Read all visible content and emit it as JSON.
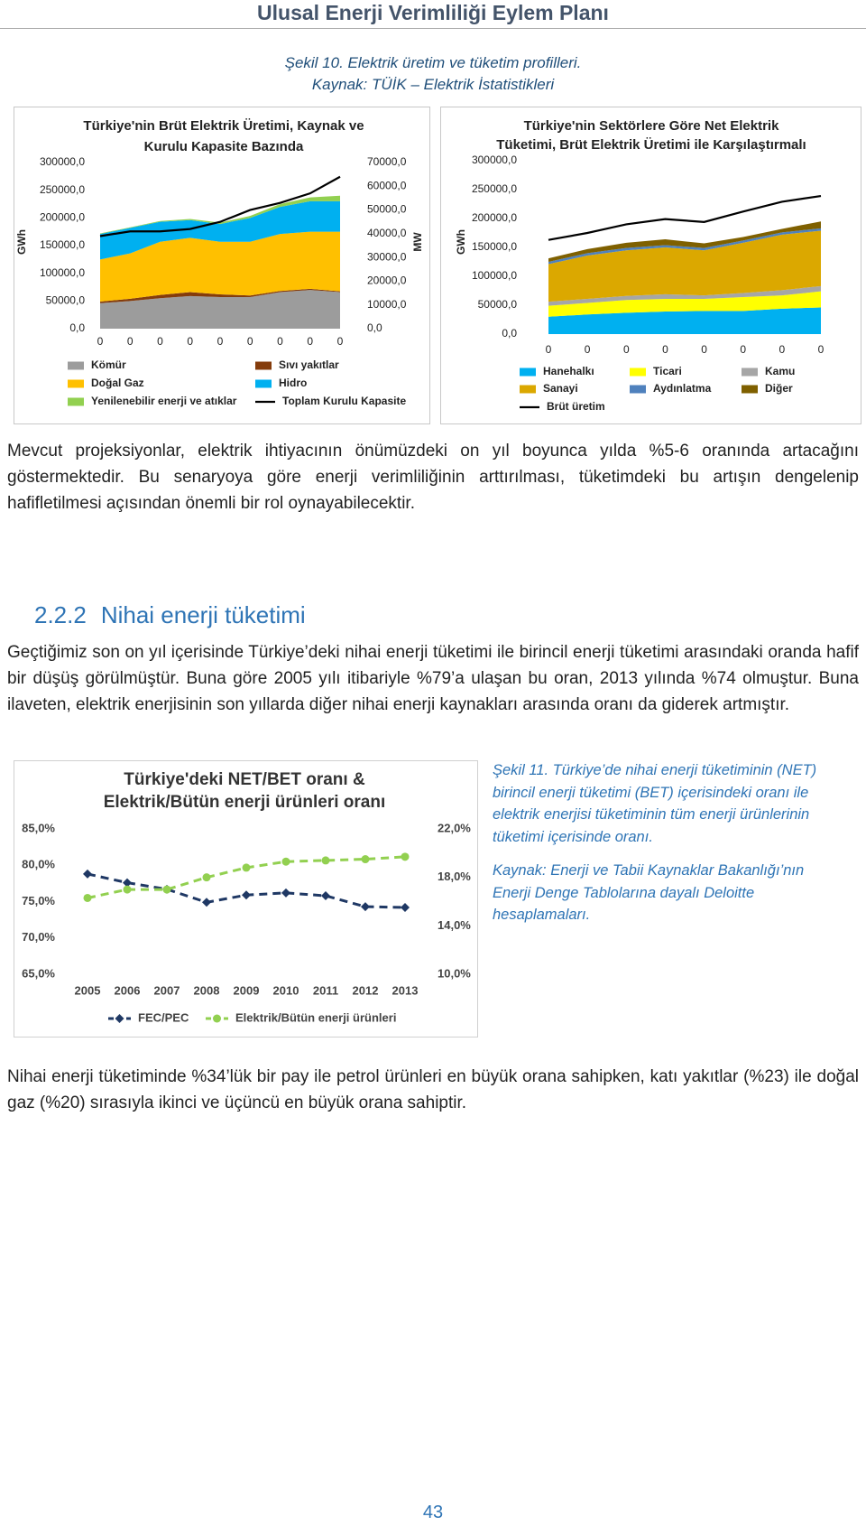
{
  "header": {
    "title": "Ulusal Enerji Verimliliği Eylem Planı"
  },
  "figure_10": {
    "caption": "Şekil 10. Elektrik üretim ve tüketim profilleri.",
    "source": "Kaynak: TÜİK – Elektrik İstatistikleri"
  },
  "chart_data": [
    {
      "type": "area",
      "title": [
        "Türkiye'nin Brüt Elektrik Üretimi, Kaynak ve",
        "Kurulu Kapasite Bazında"
      ],
      "ylabel": "GWh",
      "y2label": "MW",
      "categories": [
        "0",
        "0",
        "0",
        "0",
        "0",
        "0",
        "0",
        "0",
        "0"
      ],
      "ylim": [
        0,
        300000
      ],
      "yticks": [
        {
          "value": 0,
          "label": "0,0"
        },
        {
          "value": 50000,
          "label": "50000,0"
        },
        {
          "value": 100000,
          "label": "100000,0"
        },
        {
          "value": 150000,
          "label": "150000,0"
        },
        {
          "value": 200000,
          "label": "200000,0"
        },
        {
          "value": 250000,
          "label": "250000,0"
        },
        {
          "value": 300000,
          "label": "300000,0"
        }
      ],
      "y2lim": [
        0,
        70000
      ],
      "y2ticks": [
        {
          "value": 0,
          "label": "0,0"
        },
        {
          "value": 10000,
          "label": "10000,0"
        },
        {
          "value": 20000,
          "label": "20000,0"
        },
        {
          "value": 30000,
          "label": "30000,0"
        },
        {
          "value": 40000,
          "label": "40000,0"
        },
        {
          "value": 50000,
          "label": "50000,0"
        },
        {
          "value": 60000,
          "label": "60000,0"
        },
        {
          "value": 70000,
          "label": "70000,0"
        }
      ],
      "series": [
        {
          "name": "Kömür",
          "color": "#9c9c9c",
          "values": [
            46000,
            50000,
            55000,
            59000,
            57000,
            57000,
            66000,
            70000,
            66000
          ]
        },
        {
          "name": "Sıvı yakıtlar",
          "color": "#843c0c",
          "values": [
            3000,
            4000,
            6000,
            7000,
            5000,
            3000,
            2000,
            2000,
            1500
          ]
        },
        {
          "name": "Doğal Gaz",
          "color": "#ffc000",
          "values": [
            76000,
            82000,
            96000,
            98000,
            95000,
            97000,
            103000,
            103000,
            107500
          ]
        },
        {
          "name": "Hidro",
          "color": "#00b0f0",
          "values": [
            46000,
            46000,
            36000,
            32000,
            32000,
            43000,
            49000,
            55000,
            55000
          ]
        },
        {
          "name": "Yenilenebilir enerji ve atıklar",
          "color": "#92d050",
          "values": [
            1000,
            1000,
            1500,
            2000,
            2500,
            3500,
            5000,
            7000,
            10000
          ]
        },
        {
          "name": "Toplam Kurulu Kapasite",
          "color": "#000000",
          "kind": "line",
          "axis": "y2",
          "values": [
            39000,
            41000,
            41000,
            42000,
            45000,
            50000,
            53000,
            57000,
            64000
          ]
        }
      ]
    },
    {
      "type": "area",
      "title": [
        "Türkiye'nin Sektörlere Göre Net Elektrik",
        "Tüketimi, Brüt Elektrik Üretimi ile Karşılaştırmalı"
      ],
      "ylabel": "GWh",
      "categories": [
        "0",
        "0",
        "0",
        "0",
        "0",
        "0",
        "0",
        "0"
      ],
      "ylim": [
        0,
        300000
      ],
      "yticks": [
        {
          "value": 0,
          "label": "0,0"
        },
        {
          "value": 50000,
          "label": "50000,0"
        },
        {
          "value": 100000,
          "label": "100000,0"
        },
        {
          "value": 150000,
          "label": "150000,0"
        },
        {
          "value": 200000,
          "label": "200000,0"
        },
        {
          "value": 250000,
          "label": "250000,0"
        },
        {
          "value": 300000,
          "label": "300000,0"
        }
      ],
      "series": [
        {
          "name": "Hanehalkı",
          "color": "#00b0f0",
          "values": [
            30000,
            34000,
            37000,
            39000,
            40000,
            40000,
            44000,
            46000
          ]
        },
        {
          "name": "Ticari",
          "color": "#ffff00",
          "values": [
            19000,
            20000,
            22000,
            22000,
            21000,
            24000,
            23000,
            28000
          ]
        },
        {
          "name": "Kamu",
          "color": "#a6a6a6",
          "values": [
            7000,
            7000,
            7000,
            8000,
            6000,
            7000,
            9000,
            9000
          ]
        },
        {
          "name": "Sanayi",
          "color": "#dba800",
          "values": [
            65000,
            75000,
            79000,
            81000,
            78000,
            87000,
            96000,
            96000
          ]
        },
        {
          "name": "Aydınlatma",
          "color": "#4f81bd",
          "values": [
            4000,
            4000,
            4000,
            4000,
            4000,
            4000,
            4000,
            4000
          ]
        },
        {
          "name": "Diğer",
          "color": "#7f6000",
          "values": [
            6000,
            7000,
            9000,
            10000,
            8000,
            6000,
            6000,
            12000
          ]
        },
        {
          "name": "Brüt üretim",
          "color": "#000000",
          "kind": "line",
          "values": [
            163000,
            175000,
            190000,
            199000,
            194000,
            212000,
            229000,
            239000
          ]
        }
      ]
    },
    {
      "type": "line",
      "title": [
        "Türkiye'deki NET/BET oranı &",
        "Elektrik/Bütün enerji ürünleri oranı"
      ],
      "categories": [
        "2005",
        "2006",
        "2007",
        "2008",
        "2009",
        "2010",
        "2011",
        "2012",
        "2013"
      ],
      "ylim": [
        65,
        85
      ],
      "yticks": [
        {
          "value": 65,
          "label": "65,0%"
        },
        {
          "value": 70,
          "label": "70,0%"
        },
        {
          "value": 75,
          "label": "75,0%"
        },
        {
          "value": 80,
          "label": "80,0%"
        },
        {
          "value": 85,
          "label": "85,0%"
        }
      ],
      "y2lim": [
        10,
        22
      ],
      "y2ticks": [
        {
          "value": 10,
          "label": "10,0%"
        },
        {
          "value": 14,
          "label": "14,0%"
        },
        {
          "value": 18,
          "label": "18,0%"
        },
        {
          "value": 22,
          "label": "22,0%"
        }
      ],
      "series": [
        {
          "name": "FEC/PEC",
          "color": "#1f3864",
          "marker": "diamond",
          "linestyle": "dashed",
          "values": [
            78.8,
            77.6,
            76.7,
            74.9,
            75.9,
            76.2,
            75.8,
            74.3,
            74.2
          ]
        },
        {
          "name": "Elektrik/Bütün enerji ürünleri",
          "color": "#92d050",
          "marker": "circle",
          "linestyle": "dashed",
          "axis": "y2",
          "values": [
            16.3,
            17.0,
            17.0,
            18.0,
            18.8,
            19.3,
            19.4,
            19.5,
            19.7
          ]
        }
      ]
    }
  ],
  "paragraphs": [
    "Mevcut projeksiyonlar, elektrik ihtiyacının önümüzdeki on yıl boyunca yılda %5-6 oranında artacağını göstermektedir. Bu senaryoya göre enerji verimliliğinin arttırılması, tüketimdeki bu artışın dengelenip hafifletilmesi açısından önemli bir rol oynayabilecektir.",
    "Geçtiğimiz son on yıl içerisinde Türkiye’deki nihai enerji tüketimi ile birincil enerji tüketimi arasındaki oranda hafif bir düşüş görülmüştür. Buna göre 2005 yılı itibariyle %79’a ulaşan bu oran, 2013 yılında %74 olmuştur. Buna ilaveten, elektrik enerjisinin son yıllarda diğer nihai enerji kaynakları arasında oranı da giderek artmıştır.",
    "Nihai enerji tüketiminde %34’lük bir pay ile petrol ürünleri en büyük orana sahipken, katı yakıtlar (%23) ile doğal gaz (%20) sırasıyla ikinci ve üçüncü en büyük orana sahiptir."
  ],
  "section": {
    "number": "2.2.2",
    "title": "Nihai enerji tüketimi"
  },
  "figure_11": {
    "caption": "Şekil 11. Türkiye’de nihai enerji tüketiminin (NET) birincil enerji tüketimi (BET) içerisindeki oranı ile elektrik enerjisi tüketiminin tüm enerji ürünlerinin tüketimi içerisinde oranı.",
    "source": "Kaynak: Enerji ve Tabii Kaynaklar Bakanlığı’nın Enerji Denge Tablolarına dayalı Deloitte hesaplamaları."
  },
  "page_number": "43"
}
